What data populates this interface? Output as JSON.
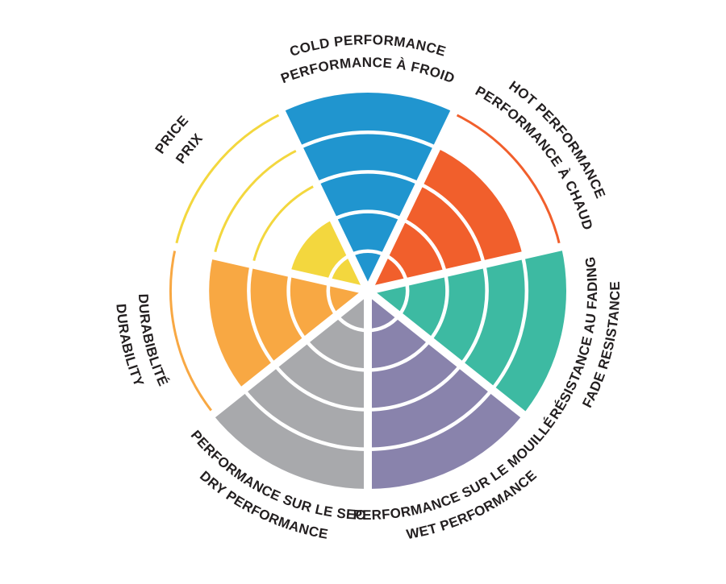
{
  "chart_data": {
    "type": "bar",
    "polar": true,
    "variant": "coxcomb-radial-rating-wheel",
    "levels": 5,
    "value_range": [
      0,
      5
    ],
    "background": "#ffffff",
    "text_color": "#231f20",
    "separator_color": "#ffffff",
    "legend_position": "around-circumference",
    "grid": "radial-rings-within-filled-wedges, unfilled levels shown as thin colored outline arcs",
    "segments": [
      {
        "id": "cold-performance",
        "line1": "COLD PERFORMANCE",
        "line2": "PERFORMANCE À FROID",
        "value": 5,
        "color": "#2095cf",
        "label_flipped": false
      },
      {
        "id": "hot-performance",
        "line1": "HOT PERFORMANCE",
        "line2": "PERFORMANCE À CHAUD",
        "value": 4,
        "color": "#f15f2c",
        "label_flipped": false
      },
      {
        "id": "fade-resistance",
        "line1": "RÉSISTANCE AU FADING",
        "line2": "FADE RESISTANCE",
        "value": 5,
        "color": "#3dbaa2",
        "label_flipped": true
      },
      {
        "id": "wet-performance",
        "line1": "PERFORMANCE SUR LE MOUILLÉ",
        "line2": "WET PERFORMANCE",
        "value": 5,
        "color": "#8983ac",
        "label_flipped": true
      },
      {
        "id": "dry-performance",
        "line1": "PERFORMANCE SUR LE SEC",
        "line2": "DRY PERFORMANCE",
        "value": 5,
        "color": "#a8a9ac",
        "label_flipped": true
      },
      {
        "id": "durability",
        "line1": "DURABIBLITÉ",
        "line2": "DURABILITY",
        "value": 4,
        "color": "#f8a843",
        "label_flipped": true
      },
      {
        "id": "price",
        "line1": "PRICE",
        "line2": "PRIX",
        "value": 2,
        "color": "#f3d73e",
        "label_flipped": false
      }
    ]
  }
}
